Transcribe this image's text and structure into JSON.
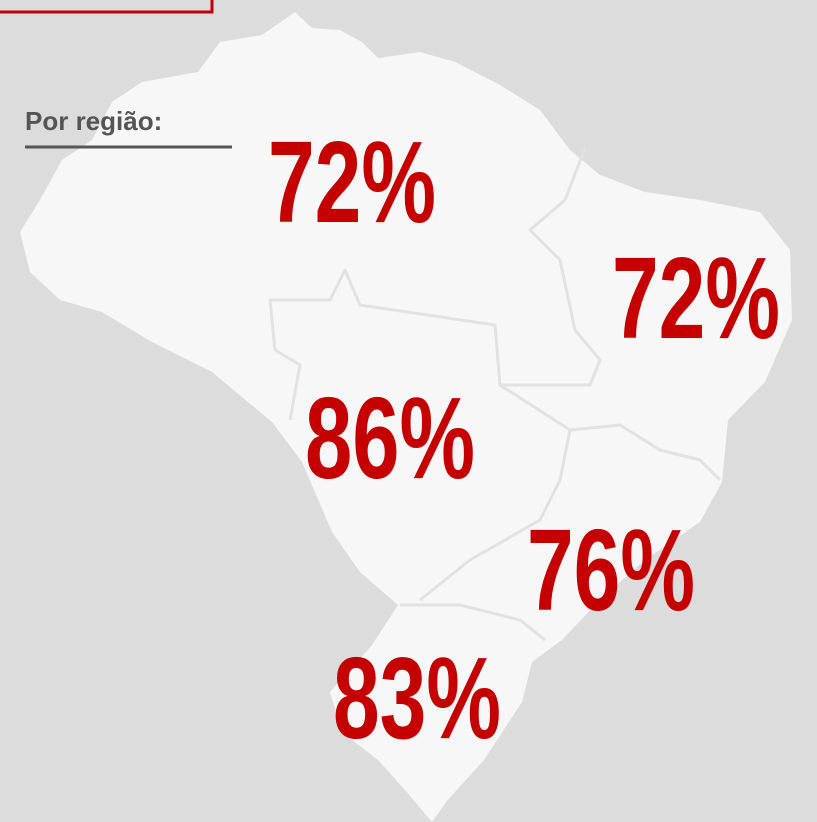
{
  "heading": "Por região:",
  "regions": [
    {
      "label": "72%"
    },
    {
      "label": "72%"
    },
    {
      "label": "86%"
    },
    {
      "label": "76%"
    },
    {
      "label": "83%"
    }
  ]
}
